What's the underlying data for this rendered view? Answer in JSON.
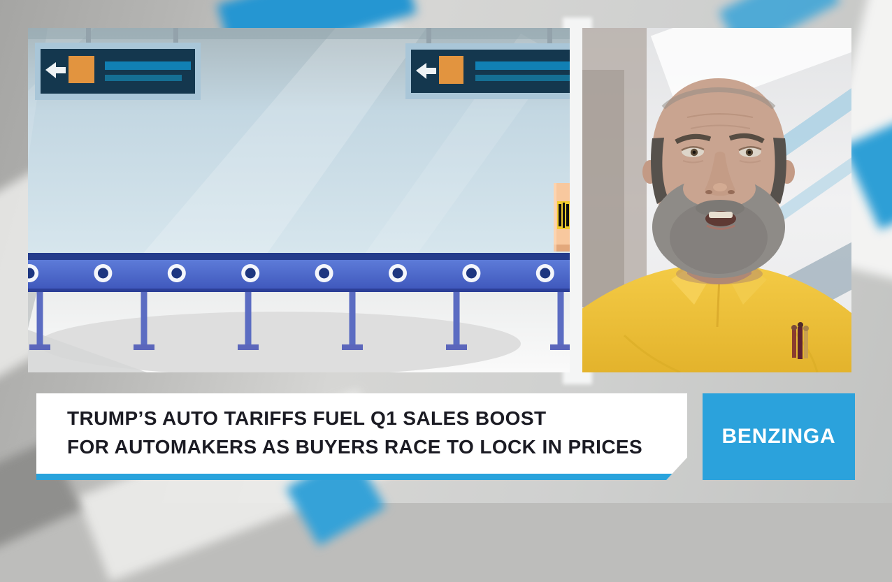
{
  "lower_third": {
    "headline_lines": [
      "TRUMP’S AUTO TARIFFS FUEL Q1 SALES BOOST",
      "FOR AUTOMAKERS AS BUYERS RACE TO LOCK IN PRICES"
    ],
    "text_color": "#1b1b23",
    "background": "#ffffff",
    "accent_bar_color": "#29a3dc"
  },
  "brand": {
    "name": "BENZINGA",
    "box_color": "#2ba2dc",
    "text_color": "#ffffff"
  },
  "scene": {
    "signs": {
      "count": 2,
      "frame_color": "#a9c6d8",
      "board_color": "#14374e",
      "arrow_icon": "left-arrow-icon",
      "tag_color": "#e2943f",
      "bar_color": "#1180b4"
    },
    "conveyor": {
      "roller_count": 8,
      "roller_spacing": 105.4,
      "leg_count": 6,
      "leg_spacing": 149,
      "belt_color": "#5071ce",
      "belt_edge_color": "#243c8c",
      "roller_ring_color": "#f4f6fb",
      "roller_hub_color": "#1d3680"
    },
    "package": {
      "color": "#f8c89e",
      "barcode_patch_color": "#f3cc2d",
      "barcode_bar_color": "#111111"
    }
  },
  "presenter": {
    "shirt_color": "#efc53c"
  }
}
